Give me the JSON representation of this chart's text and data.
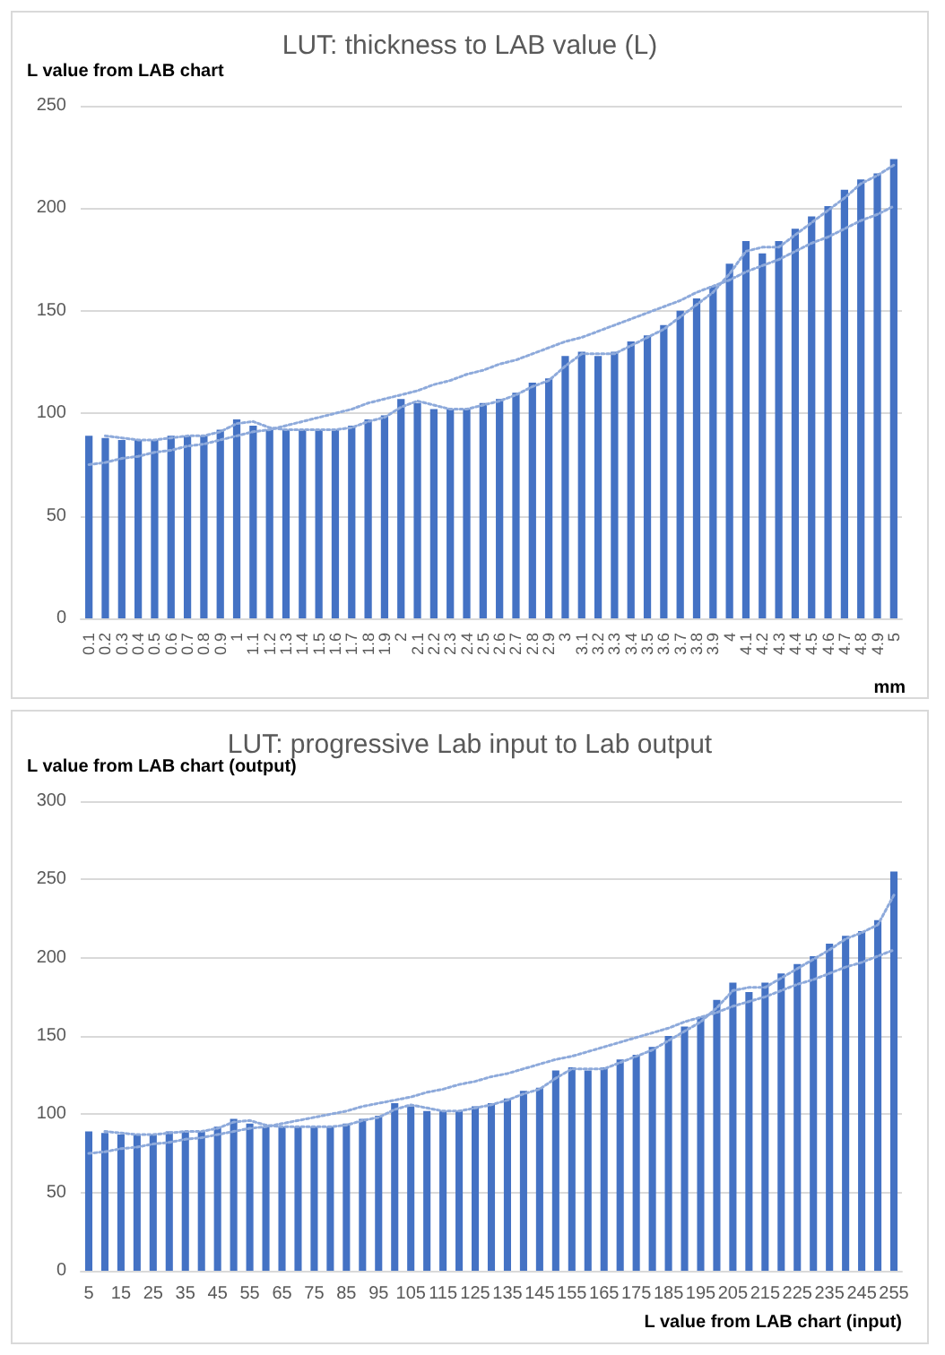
{
  "chart_data": [
    {
      "type": "bar",
      "title": "LUT: thickness to LAB value (L)",
      "ylabel": "L value from LAB chart",
      "xlabel": "mm",
      "categories": [
        "0.1",
        "0.2",
        "0.3",
        "0.4",
        "0.5",
        "0.6",
        "0.7",
        "0.8",
        "0.9",
        "1",
        "1.1",
        "1.2",
        "1.3",
        "1.4",
        "1.5",
        "1.6",
        "1.7",
        "1.8",
        "1.9",
        "2",
        "2.1",
        "2.2",
        "2.3",
        "2.4",
        "2.5",
        "2.6",
        "2.7",
        "2.8",
        "2.9",
        "3",
        "3.1",
        "3.2",
        "3.3",
        "3.4",
        "3.5",
        "3.6",
        "3.7",
        "3.8",
        "3.9",
        "4",
        "4.1",
        "4.2",
        "4.3",
        "4.4",
        "4.5",
        "4.6",
        "4.7",
        "4.8",
        "4.9",
        "5"
      ],
      "series": [
        {
          "color": "#4472c4",
          "values": [
            89,
            88,
            87,
            87,
            87,
            89,
            89,
            89,
            92,
            97,
            94,
            92,
            92,
            92,
            92,
            92,
            94,
            97,
            99,
            107,
            105,
            102,
            102,
            102,
            105,
            107,
            110,
            115,
            117,
            128,
            130,
            128,
            130,
            135,
            138,
            143,
            150,
            156,
            162,
            173,
            184,
            178,
            184,
            190,
            196,
            201,
            209,
            214,
            217,
            224
          ]
        },
        {
          "type": "line",
          "color": "#8eaadb",
          "line_style": "dotted",
          "marker": "none",
          "values": [
            75,
            76,
            78,
            79,
            81,
            82,
            84,
            85,
            87,
            89,
            91,
            92,
            94,
            96,
            98,
            100,
            102,
            105,
            107,
            109,
            111,
            114,
            116,
            119,
            121,
            124,
            126,
            129,
            132,
            135,
            137,
            140,
            143,
            146,
            149,
            152,
            155,
            159,
            162,
            165,
            169,
            172,
            175,
            179,
            183,
            186,
            190,
            194,
            197,
            201
          ]
        },
        {
          "type": "line",
          "color": "#8eaadb",
          "line_style": "dotted",
          "marker": "none",
          "values": [
            null,
            89,
            88,
            87,
            87,
            88,
            89,
            89,
            91,
            95,
            96,
            93,
            92,
            92,
            92,
            92,
            93,
            96,
            98,
            103,
            106,
            104,
            102,
            102,
            104,
            106,
            109,
            113,
            116,
            123,
            129,
            129,
            129,
            133,
            137,
            141,
            147,
            153,
            159,
            168,
            179,
            181,
            181,
            187,
            193,
            199,
            205,
            212,
            216,
            221
          ]
        }
      ],
      "ylim": [
        0,
        250
      ],
      "yticks": [
        0,
        50,
        100,
        150,
        200,
        250
      ],
      "grid": "y"
    },
    {
      "type": "bar",
      "title": "LUT: progressive Lab input to Lab output",
      "ylabel": "L value from LAB chart (output)",
      "xlabel": "L value from LAB chart (input)",
      "categories": [
        "5",
        null,
        "15",
        null,
        "25",
        null,
        "35",
        null,
        "45",
        null,
        "55",
        null,
        "65",
        null,
        "75",
        null,
        "85",
        null,
        "95",
        null,
        "105",
        null,
        "115",
        null,
        "125",
        null,
        "135",
        null,
        "145",
        null,
        "155",
        null,
        "165",
        null,
        "175",
        null,
        "185",
        null,
        "195",
        null,
        "205",
        null,
        "215",
        null,
        "225",
        null,
        "235",
        null,
        "245",
        null,
        "255"
      ],
      "series": [
        {
          "color": "#4472c4",
          "values": [
            89,
            88,
            87,
            87,
            87,
            89,
            89,
            89,
            92,
            97,
            94,
            92,
            92,
            92,
            92,
            92,
            94,
            97,
            99,
            107,
            105,
            102,
            102,
            102,
            105,
            107,
            110,
            115,
            117,
            128,
            130,
            128,
            130,
            135,
            138,
            143,
            150,
            156,
            162,
            173,
            184,
            178,
            184,
            190,
            196,
            201,
            209,
            214,
            217,
            224,
            255
          ]
        },
        {
          "type": "line",
          "color": "#8eaadb",
          "line_style": "dotted",
          "marker": "none",
          "values": [
            75,
            76,
            78,
            79,
            81,
            82,
            84,
            85,
            87,
            89,
            91,
            92,
            94,
            96,
            98,
            100,
            102,
            105,
            107,
            109,
            111,
            114,
            116,
            119,
            121,
            124,
            126,
            129,
            132,
            135,
            137,
            140,
            143,
            146,
            149,
            152,
            155,
            159,
            162,
            165,
            169,
            172,
            175,
            179,
            183,
            186,
            190,
            194,
            197,
            201,
            205
          ]
        },
        {
          "type": "line",
          "color": "#8eaadb",
          "line_style": "dotted",
          "marker": "none",
          "values": [
            null,
            89,
            88,
            87,
            87,
            88,
            89,
            89,
            91,
            95,
            96,
            93,
            92,
            92,
            92,
            92,
            93,
            96,
            98,
            103,
            106,
            104,
            102,
            102,
            104,
            106,
            109,
            113,
            116,
            123,
            129,
            129,
            129,
            133,
            137,
            141,
            147,
            153,
            159,
            168,
            179,
            181,
            181,
            187,
            193,
            199,
            205,
            212,
            216,
            221,
            240
          ]
        }
      ],
      "ylim": [
        0,
        300
      ],
      "yticks": [
        0,
        50,
        100,
        150,
        200,
        250,
        300
      ],
      "grid": "y"
    }
  ]
}
